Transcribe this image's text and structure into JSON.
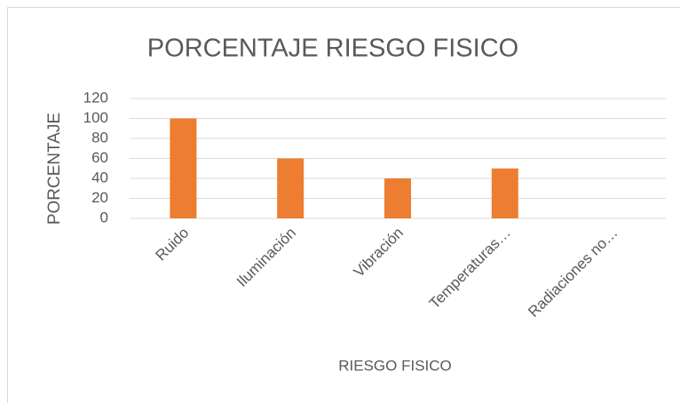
{
  "chart_data": {
    "type": "bar",
    "title": "PORCENTAJE RIESGO FISICO",
    "x_label": "RIESGO FISICO",
    "y_label": "PORCENTAJE",
    "categories": [
      "Ruido",
      "Iluminación",
      "Vibración",
      "Temperaturas…",
      "Radiaciones no…"
    ],
    "values": [
      100,
      60,
      40,
      50,
      0
    ],
    "color": "#ed7d31",
    "ylim": [
      0,
      120
    ],
    "yticks": [
      0,
      20,
      40,
      60,
      80,
      100,
      120
    ],
    "grid": true
  }
}
